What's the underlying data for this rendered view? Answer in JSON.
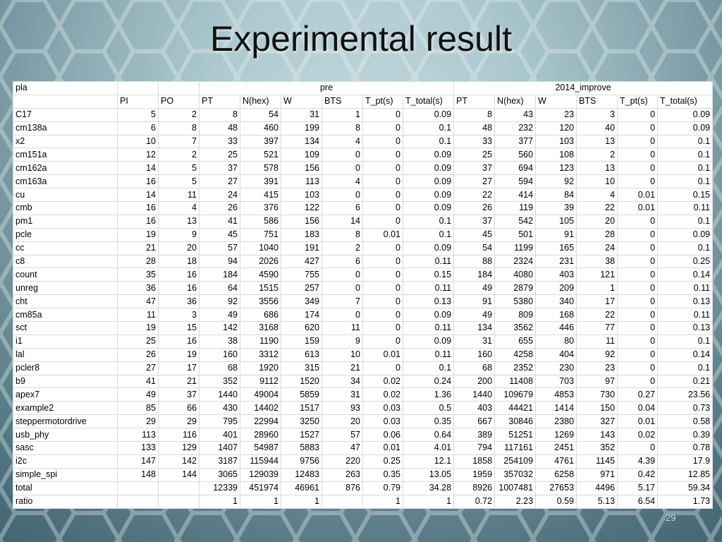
{
  "slide": {
    "title": "Experimental result",
    "page_number": "29"
  },
  "table": {
    "corner_label": "pla",
    "group_headers": [
      "pre",
      "2014_improve"
    ],
    "column_headers": [
      "PI",
      "PO",
      "PT",
      "N(hex)",
      "W",
      "BTS",
      "T_pt(s)",
      "T_total(s)",
      "PT",
      "N(hex)",
      "W",
      "BTS",
      "T_pt(s)",
      "T_total(s)"
    ],
    "rows": [
      [
        "C17",
        "5",
        "2",
        "8",
        "54",
        "31",
        "1",
        "0",
        "0.09",
        "8",
        "43",
        "23",
        "3",
        "0",
        "0.09"
      ],
      [
        "cm138a",
        "6",
        "8",
        "48",
        "460",
        "199",
        "8",
        "0",
        "0.1",
        "48",
        "232",
        "120",
        "40",
        "0",
        "0.09"
      ],
      [
        "x2",
        "10",
        "7",
        "33",
        "397",
        "134",
        "4",
        "0",
        "0.1",
        "33",
        "377",
        "103",
        "13",
        "0",
        "0.1"
      ],
      [
        "cm151a",
        "12",
        "2",
        "25",
        "521",
        "109",
        "0",
        "0",
        "0.09",
        "25",
        "560",
        "108",
        "2",
        "0",
        "0.1"
      ],
      [
        "cm162a",
        "14",
        "5",
        "37",
        "578",
        "156",
        "0",
        "0",
        "0.09",
        "37",
        "694",
        "123",
        "13",
        "0",
        "0.1"
      ],
      [
        "cm163a",
        "16",
        "5",
        "27",
        "391",
        "113",
        "4",
        "0",
        "0.09",
        "27",
        "594",
        "92",
        "10",
        "0",
        "0.1"
      ],
      [
        "cu",
        "14",
        "11",
        "24",
        "415",
        "103",
        "0",
        "0",
        "0.09",
        "22",
        "414",
        "84",
        "4",
        "0.01",
        "0.15"
      ],
      [
        "cmb",
        "16",
        "4",
        "26",
        "376",
        "122",
        "6",
        "0",
        "0.09",
        "26",
        "119",
        "39",
        "22",
        "0.01",
        "0.11"
      ],
      [
        "pm1",
        "16",
        "13",
        "41",
        "586",
        "156",
        "14",
        "0",
        "0.1",
        "37",
        "542",
        "105",
        "20",
        "0",
        "0.1"
      ],
      [
        "pcle",
        "19",
        "9",
        "45",
        "751",
        "183",
        "8",
        "0.01",
        "0.1",
        "45",
        "501",
        "91",
        "28",
        "0",
        "0.09"
      ],
      [
        "cc",
        "21",
        "20",
        "57",
        "1040",
        "191",
        "2",
        "0",
        "0.09",
        "54",
        "1199",
        "165",
        "24",
        "0",
        "0.1"
      ],
      [
        "c8",
        "28",
        "18",
        "94",
        "2026",
        "427",
        "6",
        "0",
        "0.11",
        "88",
        "2324",
        "231",
        "38",
        "0",
        "0.25"
      ],
      [
        "count",
        "35",
        "16",
        "184",
        "4590",
        "755",
        "0",
        "0",
        "0.15",
        "184",
        "4080",
        "403",
        "121",
        "0",
        "0.14"
      ],
      [
        "unreg",
        "36",
        "16",
        "64",
        "1515",
        "257",
        "0",
        "0",
        "0.11",
        "49",
        "2879",
        "209",
        "1",
        "0",
        "0.11"
      ],
      [
        "cht",
        "47",
        "36",
        "92",
        "3556",
        "349",
        "7",
        "0",
        "0.13",
        "91",
        "5380",
        "340",
        "17",
        "0",
        "0.13"
      ],
      [
        "cm85a",
        "11",
        "3",
        "49",
        "686",
        "174",
        "0",
        "0",
        "0.09",
        "49",
        "809",
        "168",
        "22",
        "0",
        "0.11"
      ],
      [
        "sct",
        "19",
        "15",
        "142",
        "3168",
        "620",
        "11",
        "0",
        "0.11",
        "134",
        "3562",
        "446",
        "77",
        "0",
        "0.13"
      ],
      [
        "i1",
        "25",
        "16",
        "38",
        "1190",
        "159",
        "9",
        "0",
        "0.09",
        "31",
        "655",
        "80",
        "11",
        "0",
        "0.1"
      ],
      [
        "lal",
        "26",
        "19",
        "160",
        "3312",
        "613",
        "10",
        "0.01",
        "0.11",
        "160",
        "4258",
        "404",
        "92",
        "0",
        "0.14"
      ],
      [
        "pcler8",
        "27",
        "17",
        "68",
        "1920",
        "315",
        "21",
        "0",
        "0.1",
        "68",
        "2352",
        "230",
        "23",
        "0",
        "0.1"
      ],
      [
        "b9",
        "41",
        "21",
        "352",
        "9112",
        "1520",
        "34",
        "0.02",
        "0.24",
        "200",
        "11408",
        "703",
        "97",
        "0",
        "0.21"
      ],
      [
        "apex7",
        "49",
        "37",
        "1440",
        "49004",
        "5859",
        "31",
        "0.02",
        "1.36",
        "1440",
        "109679",
        "4853",
        "730",
        "0.27",
        "23.56"
      ],
      [
        "example2",
        "85",
        "66",
        "430",
        "14402",
        "1517",
        "93",
        "0.03",
        "0.5",
        "403",
        "44421",
        "1414",
        "150",
        "0.04",
        "0.73"
      ],
      [
        "steppermotordrive",
        "29",
        "29",
        "795",
        "22994",
        "3250",
        "20",
        "0.03",
        "0.35",
        "667",
        "30846",
        "2380",
        "327",
        "0.01",
        "0.58"
      ],
      [
        "usb_phy",
        "113",
        "116",
        "401",
        "28960",
        "1527",
        "57",
        "0.06",
        "0.64",
        "389",
        "51251",
        "1269",
        "143",
        "0.02",
        "0.39"
      ],
      [
        "sasc",
        "133",
        "129",
        "1407",
        "54987",
        "5883",
        "47",
        "0.01",
        "4.01",
        "794",
        "117161",
        "2451",
        "352",
        "0",
        "0.78"
      ],
      [
        "i2c",
        "147",
        "142",
        "3187",
        "115944",
        "9756",
        "220",
        "0.25",
        "12.1",
        "1858",
        "254109",
        "4761",
        "1145",
        "4.39",
        "17.9"
      ],
      [
        "simple_spi",
        "148",
        "144",
        "3065",
        "129039",
        "12483",
        "263",
        "0.35",
        "13.05",
        "1959",
        "357032",
        "6258",
        "971",
        "0.42",
        "12.85"
      ],
      [
        "total",
        "",
        "",
        "12339",
        "451974",
        "46961",
        "876",
        "0.79",
        "34.28",
        "8926",
        "1007481",
        "27653",
        "4496",
        "5.17",
        "59.34"
      ],
      [
        "ratio",
        "",
        "",
        "1",
        "1",
        "1",
        "",
        "1",
        "1",
        "0.72",
        "2.23",
        "0.59",
        "5.13",
        "6.54",
        "1.73"
      ]
    ]
  }
}
